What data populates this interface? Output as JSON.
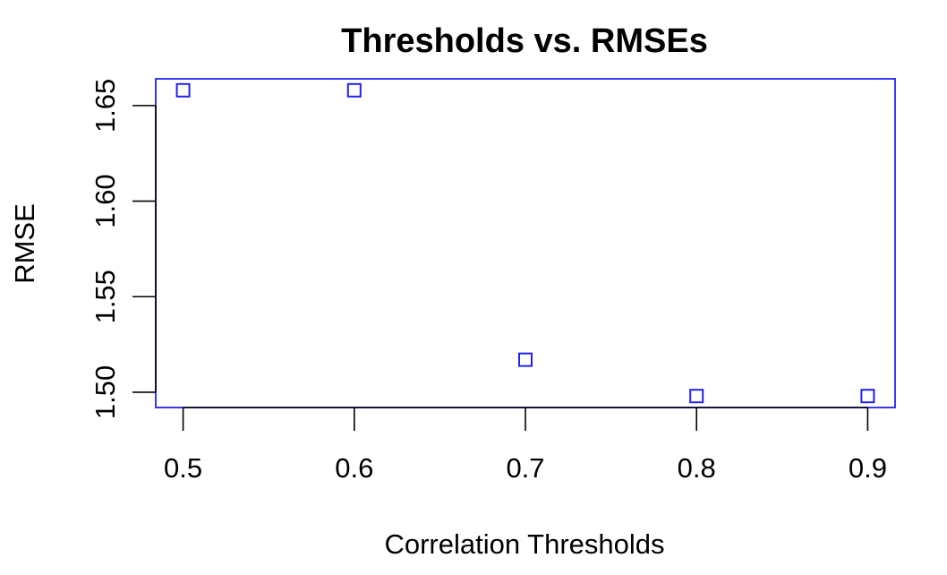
{
  "chart_data": {
    "type": "scatter",
    "title": "Thresholds vs. RMSEs",
    "xlabel": "Correlation Thresholds",
    "ylabel": "RMSE",
    "x": [
      0.5,
      0.6,
      0.7,
      0.8,
      0.9
    ],
    "y": [
      1.658,
      1.658,
      1.517,
      1.498,
      1.498
    ],
    "xlim": [
      0.484,
      0.916
    ],
    "ylim": [
      1.492,
      1.664
    ],
    "x_ticks": [
      0.5,
      0.6,
      0.7,
      0.8,
      0.9
    ],
    "x_tick_labels": [
      "0.5",
      "0.6",
      "0.7",
      "0.8",
      "0.9"
    ],
    "y_ticks": [
      1.5,
      1.55,
      1.6,
      1.65
    ],
    "y_tick_labels": [
      "1.50",
      "1.55",
      "1.60",
      "1.65"
    ],
    "marker": "open-square",
    "grid": false,
    "colors": {
      "points": "#2222ee",
      "frame": "#2222ee",
      "axes": "#000000"
    }
  }
}
